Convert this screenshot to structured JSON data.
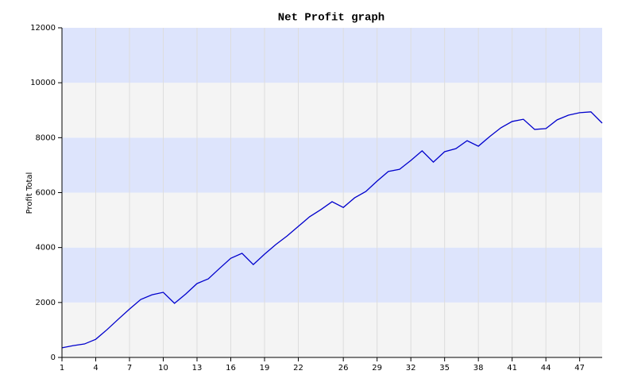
{
  "chart_data": {
    "type": "line",
    "title": "Net Profit graph",
    "y_label": "Profit Total",
    "x": [
      1,
      2,
      3,
      4,
      5,
      6,
      7,
      8,
      9,
      10,
      11,
      12,
      13,
      14,
      15,
      16,
      17,
      18,
      19,
      20,
      21,
      22,
      23,
      24,
      25,
      26,
      27,
      28,
      29,
      30,
      31,
      32,
      33,
      34,
      35,
      36,
      37,
      38,
      39,
      40,
      41,
      42,
      43,
      44,
      45,
      46,
      47,
      48,
      49
    ],
    "series": [
      {
        "name": "Net Profit",
        "color": "#0000cc",
        "values": [
          350,
          430,
          490,
          660,
          1010,
          1390,
          1760,
          2110,
          2280,
          2370,
          1970,
          2310,
          2690,
          2860,
          3240,
          3610,
          3790,
          3380,
          3760,
          4110,
          4420,
          4770,
          5120,
          5380,
          5670,
          5460,
          5810,
          6040,
          6420,
          6770,
          6850,
          7170,
          7520,
          7110,
          7490,
          7600,
          7890,
          7690,
          8040,
          8360,
          8590,
          8670,
          8300,
          8330,
          8650,
          8820,
          8910,
          8940,
          8530
        ]
      }
    ],
    "xlim": [
      1,
      49
    ],
    "xticks": [
      1,
      4,
      7,
      10,
      13,
      16,
      19,
      22,
      26,
      29,
      32,
      35,
      38,
      41,
      44,
      47
    ],
    "ylim": [
      0,
      12000
    ],
    "yticks": [
      0,
      2000,
      4000,
      6000,
      8000,
      10000,
      12000
    ],
    "band_colors": [
      "#f4f4f4",
      "#dde4fc"
    ],
    "grid": true,
    "grid_color": "#dddddd"
  }
}
